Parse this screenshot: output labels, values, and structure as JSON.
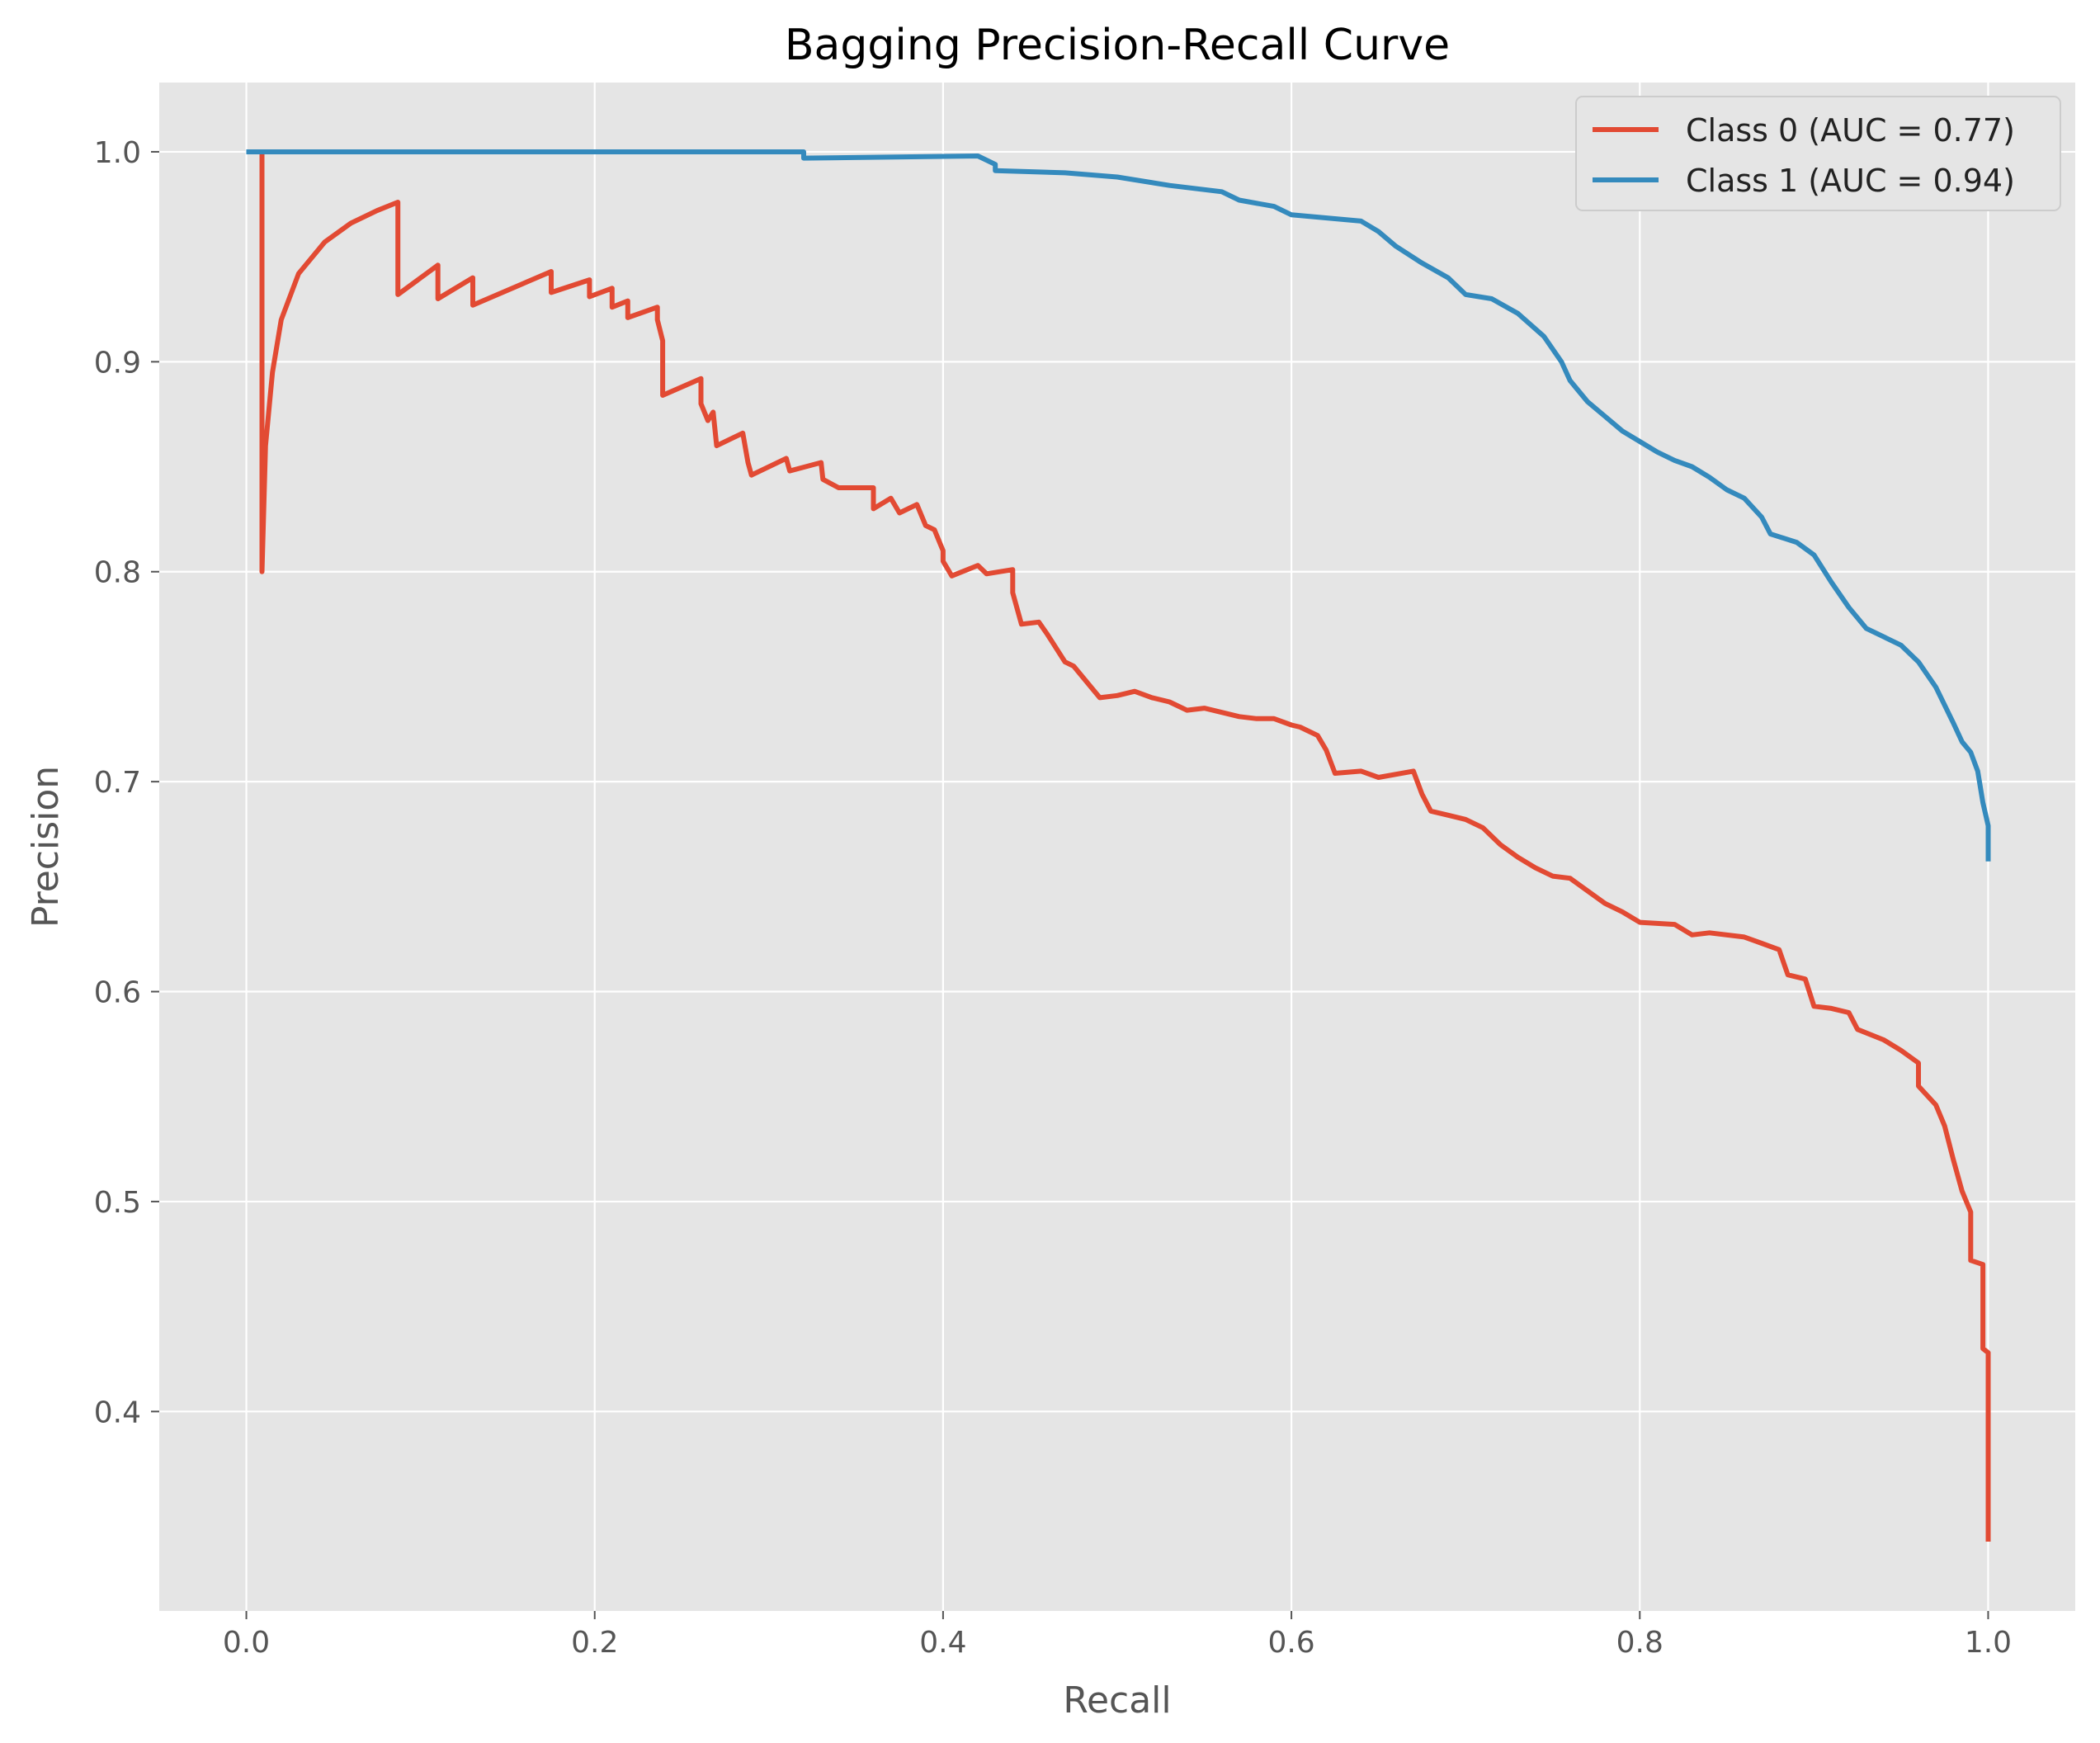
{
  "chart_data": {
    "type": "line",
    "title": "Bagging Precision-Recall Curve",
    "xlabel": "Recall",
    "ylabel": "Precision",
    "xlim": [
      -0.05,
      1.05
    ],
    "ylim": [
      0.305,
      1.033
    ],
    "xticks": [
      0.0,
      0.2,
      0.4,
      0.6,
      0.8,
      1.0
    ],
    "xtick_labels": [
      "0.0",
      "0.2",
      "0.4",
      "0.6",
      "0.8",
      "1.0"
    ],
    "yticks": [
      0.4,
      0.5,
      0.6,
      0.7,
      0.8,
      0.9,
      1.0
    ],
    "ytick_labels": [
      "0.4",
      "0.5",
      "0.6",
      "0.7",
      "0.8",
      "0.9",
      "1.0"
    ],
    "grid": true,
    "legend_position": "top-right",
    "series": [
      {
        "name": "Class 0 (AUC = 0.77)",
        "color": "#E24A33",
        "points": [
          [
            0.009,
            1.0
          ],
          [
            0.009,
            0.8
          ],
          [
            0.011,
            0.86
          ],
          [
            0.015,
            0.895
          ],
          [
            0.02,
            0.92
          ],
          [
            0.03,
            0.942
          ],
          [
            0.045,
            0.957
          ],
          [
            0.06,
            0.966
          ],
          [
            0.075,
            0.972
          ],
          [
            0.087,
            0.976
          ],
          [
            0.087,
            0.932
          ],
          [
            0.11,
            0.946
          ],
          [
            0.11,
            0.93
          ],
          [
            0.13,
            0.94
          ],
          [
            0.13,
            0.927
          ],
          [
            0.175,
            0.943
          ],
          [
            0.175,
            0.933
          ],
          [
            0.197,
            0.939
          ],
          [
            0.197,
            0.931
          ],
          [
            0.21,
            0.935
          ],
          [
            0.21,
            0.926
          ],
          [
            0.219,
            0.929
          ],
          [
            0.219,
            0.921
          ],
          [
            0.236,
            0.926
          ],
          [
            0.236,
            0.92
          ],
          [
            0.239,
            0.91
          ],
          [
            0.239,
            0.884
          ],
          [
            0.261,
            0.892
          ],
          [
            0.261,
            0.88
          ],
          [
            0.265,
            0.872
          ],
          [
            0.268,
            0.876
          ],
          [
            0.27,
            0.86
          ],
          [
            0.285,
            0.866
          ],
          [
            0.288,
            0.852
          ],
          [
            0.29,
            0.846
          ],
          [
            0.31,
            0.854
          ],
          [
            0.312,
            0.848
          ],
          [
            0.33,
            0.852
          ],
          [
            0.331,
            0.844
          ],
          [
            0.34,
            0.84
          ],
          [
            0.36,
            0.84
          ],
          [
            0.36,
            0.83
          ],
          [
            0.37,
            0.835
          ],
          [
            0.375,
            0.828
          ],
          [
            0.385,
            0.832
          ],
          [
            0.39,
            0.822
          ],
          [
            0.395,
            0.82
          ],
          [
            0.4,
            0.81
          ],
          [
            0.4,
            0.805
          ],
          [
            0.405,
            0.798
          ],
          [
            0.42,
            0.803
          ],
          [
            0.425,
            0.799
          ],
          [
            0.44,
            0.801
          ],
          [
            0.44,
            0.79
          ],
          [
            0.445,
            0.775
          ],
          [
            0.455,
            0.776
          ],
          [
            0.46,
            0.77
          ],
          [
            0.47,
            0.757
          ],
          [
            0.475,
            0.755
          ],
          [
            0.485,
            0.745
          ],
          [
            0.49,
            0.74
          ],
          [
            0.5,
            0.741
          ],
          [
            0.51,
            0.743
          ],
          [
            0.52,
            0.74
          ],
          [
            0.53,
            0.738
          ],
          [
            0.54,
            0.734
          ],
          [
            0.55,
            0.735
          ],
          [
            0.56,
            0.733
          ],
          [
            0.57,
            0.731
          ],
          [
            0.58,
            0.73
          ],
          [
            0.59,
            0.73
          ],
          [
            0.6,
            0.727
          ],
          [
            0.605,
            0.726
          ],
          [
            0.615,
            0.722
          ],
          [
            0.62,
            0.715
          ],
          [
            0.625,
            0.704
          ],
          [
            0.64,
            0.705
          ],
          [
            0.65,
            0.702
          ],
          [
            0.67,
            0.705
          ],
          [
            0.675,
            0.694
          ],
          [
            0.68,
            0.686
          ],
          [
            0.69,
            0.684
          ],
          [
            0.7,
            0.682
          ],
          [
            0.71,
            0.678
          ],
          [
            0.72,
            0.67
          ],
          [
            0.73,
            0.664
          ],
          [
            0.74,
            0.659
          ],
          [
            0.75,
            0.655
          ],
          [
            0.76,
            0.654
          ],
          [
            0.77,
            0.648
          ],
          [
            0.78,
            0.642
          ],
          [
            0.79,
            0.638
          ],
          [
            0.8,
            0.633
          ],
          [
            0.82,
            0.632
          ],
          [
            0.83,
            0.627
          ],
          [
            0.84,
            0.628
          ],
          [
            0.86,
            0.626
          ],
          [
            0.87,
            0.623
          ],
          [
            0.88,
            0.62
          ],
          [
            0.885,
            0.608
          ],
          [
            0.895,
            0.606
          ],
          [
            0.9,
            0.593
          ],
          [
            0.91,
            0.592
          ],
          [
            0.92,
            0.59
          ],
          [
            0.925,
            0.582
          ],
          [
            0.94,
            0.577
          ],
          [
            0.95,
            0.572
          ],
          [
            0.96,
            0.566
          ],
          [
            0.96,
            0.555
          ],
          [
            0.97,
            0.546
          ],
          [
            0.975,
            0.536
          ],
          [
            0.98,
            0.52
          ],
          [
            0.985,
            0.505
          ],
          [
            0.99,
            0.495
          ],
          [
            0.99,
            0.472
          ],
          [
            0.997,
            0.47
          ],
          [
            0.997,
            0.43
          ],
          [
            1.0,
            0.428
          ],
          [
            1.0,
            0.338
          ]
        ]
      },
      {
        "name": "Class 1 (AUC = 0.94)",
        "color": "#348ABD",
        "points": [
          [
            0.0,
            1.0
          ],
          [
            0.32,
            1.0
          ],
          [
            0.32,
            0.997
          ],
          [
            0.42,
            0.998
          ],
          [
            0.43,
            0.994
          ],
          [
            0.43,
            0.991
          ],
          [
            0.47,
            0.99
          ],
          [
            0.5,
            0.988
          ],
          [
            0.53,
            0.984
          ],
          [
            0.56,
            0.981
          ],
          [
            0.57,
            0.977
          ],
          [
            0.59,
            0.974
          ],
          [
            0.6,
            0.97
          ],
          [
            0.64,
            0.967
          ],
          [
            0.65,
            0.962
          ],
          [
            0.66,
            0.955
          ],
          [
            0.675,
            0.947
          ],
          [
            0.69,
            0.94
          ],
          [
            0.7,
            0.932
          ],
          [
            0.715,
            0.93
          ],
          [
            0.73,
            0.923
          ],
          [
            0.745,
            0.912
          ],
          [
            0.755,
            0.9
          ],
          [
            0.76,
            0.891
          ],
          [
            0.77,
            0.881
          ],
          [
            0.78,
            0.874
          ],
          [
            0.79,
            0.867
          ],
          [
            0.8,
            0.862
          ],
          [
            0.81,
            0.857
          ],
          [
            0.82,
            0.853
          ],
          [
            0.83,
            0.85
          ],
          [
            0.84,
            0.845
          ],
          [
            0.85,
            0.839
          ],
          [
            0.86,
            0.835
          ],
          [
            0.87,
            0.826
          ],
          [
            0.875,
            0.818
          ],
          [
            0.89,
            0.814
          ],
          [
            0.9,
            0.808
          ],
          [
            0.91,
            0.795
          ],
          [
            0.92,
            0.783
          ],
          [
            0.93,
            0.773
          ],
          [
            0.94,
            0.769
          ],
          [
            0.95,
            0.765
          ],
          [
            0.96,
            0.757
          ],
          [
            0.97,
            0.745
          ],
          [
            0.98,
            0.728
          ],
          [
            0.985,
            0.719
          ],
          [
            0.99,
            0.714
          ],
          [
            0.994,
            0.705
          ],
          [
            0.997,
            0.69
          ],
          [
            1.0,
            0.679
          ],
          [
            1.0,
            0.662
          ]
        ]
      }
    ]
  }
}
